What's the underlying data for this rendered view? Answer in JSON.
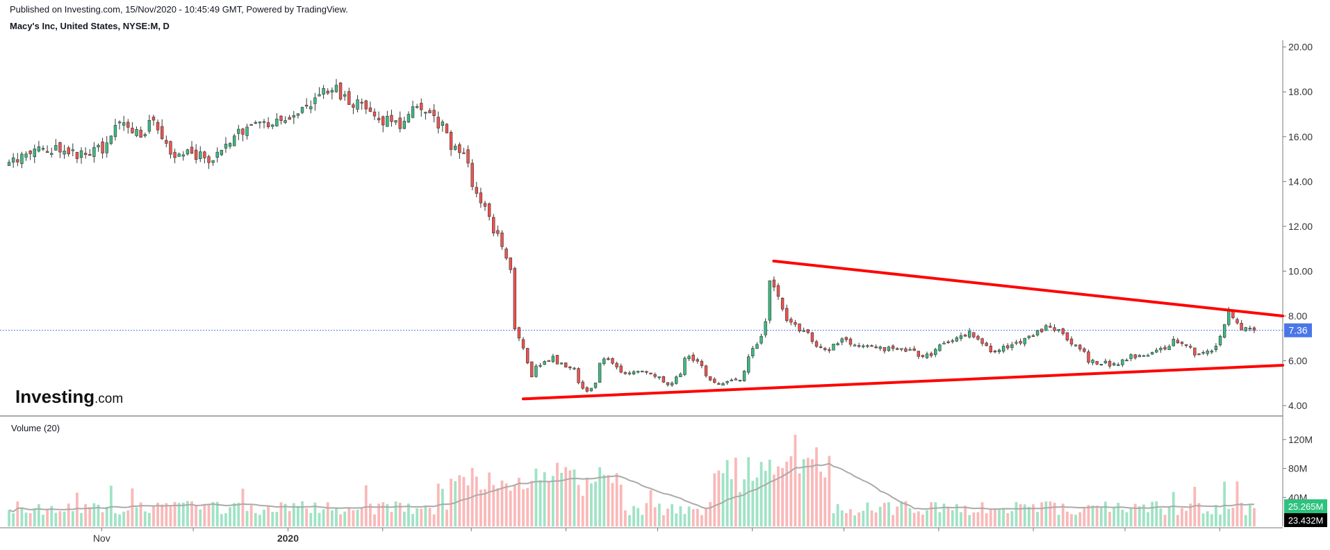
{
  "header": {
    "published": "Published on Investing.com, 15/Nov/2020 - 10:45:49 GMT, Powered by TradingView.",
    "symbol": "Macy's Inc, United States, NYSE:M, D"
  },
  "logo": {
    "brand": "Investing",
    "suffix": ".com"
  },
  "volume_panel": {
    "label": "Volume (20)"
  },
  "colors": {
    "up": "#26a69a",
    "up_body": "#3dbb82",
    "down": "#ef5350",
    "trend": "#ff0000",
    "vol_up": "#9fe3c5",
    "vol_down": "#fab8b8",
    "ma": "#aaaaaa",
    "price_badge": "#4a77e8",
    "vol_badge_green": "#2ec27e",
    "vol_badge_black": "#000000"
  },
  "chart_data": {
    "type": "candlestick",
    "price_axis": {
      "ticks": [
        "20.00",
        "18.00",
        "16.00",
        "14.00",
        "12.00",
        "10.00",
        "8.00",
        "6.00",
        "4.00"
      ],
      "tick_values": [
        20,
        18,
        16,
        14,
        12,
        10,
        8,
        6,
        4
      ],
      "ylim": [
        3.6,
        20.3
      ]
    },
    "volume_axis": {
      "ticks": [
        "120M",
        "80M",
        "40M"
      ],
      "tick_values": [
        120,
        80,
        40
      ],
      "ylim": [
        0,
        140
      ]
    },
    "x_axis": {
      "labels": [
        "Nov",
        "2020"
      ],
      "range": [
        "2019-10-01",
        "2020-11-13"
      ]
    },
    "last_price": {
      "value": 7.36,
      "label": "7.36"
    },
    "volume_badges": [
      {
        "label": "25.265M",
        "value": 25.265
      },
      {
        "label": "23.432M",
        "value": 23.432
      }
    ],
    "trendlines": [
      {
        "name": "upper",
        "from": {
          "date": "2020-06-08",
          "price": 10.45
        },
        "to": {
          "date": "2020-11-13",
          "price": 8.0
        }
      },
      {
        "name": "lower",
        "from": {
          "date": "2020-03-18",
          "price": 4.3
        },
        "to": {
          "date": "2020-11-13",
          "price": 5.8
        }
      }
    ],
    "path": [
      [
        "2019-10-01",
        14.9
      ],
      [
        "2019-10-10",
        15.6
      ],
      [
        "2019-10-20",
        15.2
      ],
      [
        "2019-10-31",
        15.5
      ],
      [
        "2019-11-05",
        16.5
      ],
      [
        "2019-11-12",
        16.1
      ],
      [
        "2019-11-18",
        16.9
      ],
      [
        "2019-11-22",
        15.0
      ],
      [
        "2019-11-28",
        15.4
      ],
      [
        "2019-12-05",
        15.1
      ],
      [
        "2019-12-12",
        15.7
      ],
      [
        "2019-12-18",
        16.3
      ],
      [
        "2019-12-27",
        16.6
      ],
      [
        "2020-01-06",
        17.1
      ],
      [
        "2020-01-14",
        18.2
      ],
      [
        "2020-01-22",
        17.6
      ],
      [
        "2020-01-30",
        16.8
      ],
      [
        "2020-02-06",
        16.5
      ],
      [
        "2020-02-13",
        17.4
      ],
      [
        "2020-02-20",
        16.4
      ],
      [
        "2020-02-27",
        15.1
      ],
      [
        "2020-03-04",
        13.0
      ],
      [
        "2020-03-10",
        11.5
      ],
      [
        "2020-03-13",
        10.0
      ],
      [
        "2020-03-16",
        7.5
      ],
      [
        "2020-03-18",
        6.6
      ],
      [
        "2020-03-20",
        5.3
      ],
      [
        "2020-03-27",
        6.2
      ],
      [
        "2020-04-03",
        5.6
      ],
      [
        "2020-04-08",
        4.6
      ],
      [
        "2020-04-14",
        6.1
      ],
      [
        "2020-04-21",
        5.4
      ],
      [
        "2020-04-27",
        5.5
      ],
      [
        "2020-05-05",
        4.9
      ],
      [
        "2020-05-12",
        6.2
      ],
      [
        "2020-05-20",
        5.0
      ],
      [
        "2020-05-28",
        5.2
      ],
      [
        "2020-06-04",
        7.0
      ],
      [
        "2020-06-08",
        9.6
      ],
      [
        "2020-06-12",
        7.9
      ],
      [
        "2020-06-18",
        7.3
      ],
      [
        "2020-06-25",
        6.5
      ],
      [
        "2020-07-01",
        6.9
      ],
      [
        "2020-07-10",
        6.6
      ],
      [
        "2020-07-20",
        6.5
      ],
      [
        "2020-07-29",
        6.2
      ],
      [
        "2020-08-05",
        6.9
      ],
      [
        "2020-08-12",
        7.2
      ],
      [
        "2020-08-20",
        6.4
      ],
      [
        "2020-08-31",
        6.9
      ],
      [
        "2020-09-07",
        7.7
      ],
      [
        "2020-09-14",
        6.9
      ],
      [
        "2020-09-21",
        6.0
      ],
      [
        "2020-09-28",
        5.8
      ],
      [
        "2020-10-05",
        6.2
      ],
      [
        "2020-10-12",
        6.3
      ],
      [
        "2020-10-19",
        7.0
      ],
      [
        "2020-10-26",
        6.2
      ],
      [
        "2020-11-02",
        6.6
      ],
      [
        "2020-11-05",
        8.2
      ],
      [
        "2020-11-10",
        7.4
      ],
      [
        "2020-11-13",
        7.36
      ]
    ]
  }
}
